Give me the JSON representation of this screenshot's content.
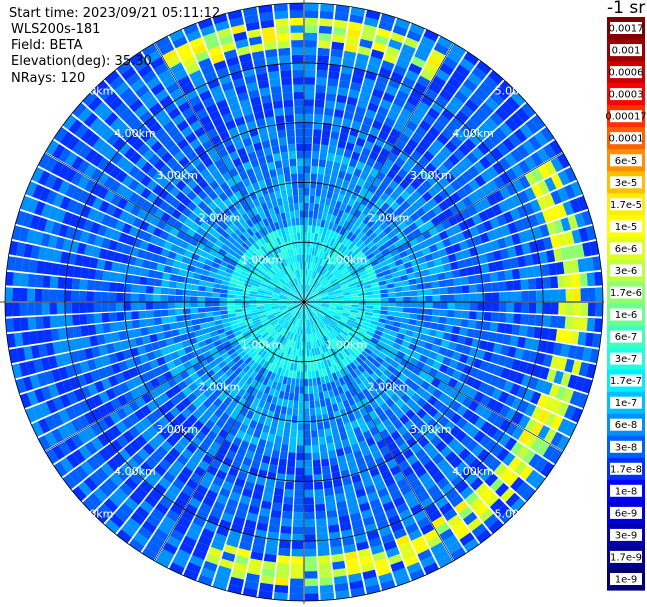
{
  "header": {
    "start_time": "Start time: 2023/09/21 05:11:12",
    "instrument": "WLS200s-181",
    "field": "Field: BETA",
    "elevation": "Elevation(deg): 35.30",
    "nrays": "NRays: 120"
  },
  "colorbar": {
    "title": "-1 sr",
    "labels": [
      "0.0017",
      "0.001",
      "0.0006",
      "0.0003",
      "0.00017",
      "0.0001",
      "6e-5",
      "3e-5",
      "1.7e-5",
      "1e-5",
      "6e-6",
      "3e-6",
      "1.7e-6",
      "1e-6",
      "6e-7",
      "3e-7",
      "1.7e-7",
      "1e-7",
      "6e-8",
      "3e-8",
      "1.7e-8",
      "1e-8",
      "6e-9",
      "3e-9",
      "1.7e-9",
      "1e-9"
    ],
    "colors": [
      "#7f0000",
      "#9a0000",
      "#cc0000",
      "#ff0000",
      "#ff3000",
      "#ff6000",
      "#ff8f00",
      "#ffbf00",
      "#ffee00",
      "#ffff00",
      "#e0ff1f",
      "#bfff3f",
      "#8fff6f",
      "#6fff8f",
      "#3fffbf",
      "#1fffdf",
      "#00efff",
      "#00bfff",
      "#0090ff",
      "#0060ff",
      "#0030ff",
      "#0000ff",
      "#0000dd",
      "#0000b0",
      "#000090",
      "#000070"
    ]
  },
  "chart_data": {
    "type": "heatmap",
    "projection": "polar PPI",
    "n_rays": 120,
    "range_rings_km": [
      1,
      2,
      3,
      4,
      5
    ],
    "ring_labels": [
      "1.00km",
      "2.00km",
      "3.00km",
      "4.00km",
      "5.00km"
    ],
    "max_range_km": 5.0,
    "field": "BETA",
    "description_values": {
      "center_region_color_index": 16,
      "mid_region_color_index": 18,
      "outer_region_color_index": 19,
      "far_edge_high_color_index": 8
    },
    "grid": true
  }
}
